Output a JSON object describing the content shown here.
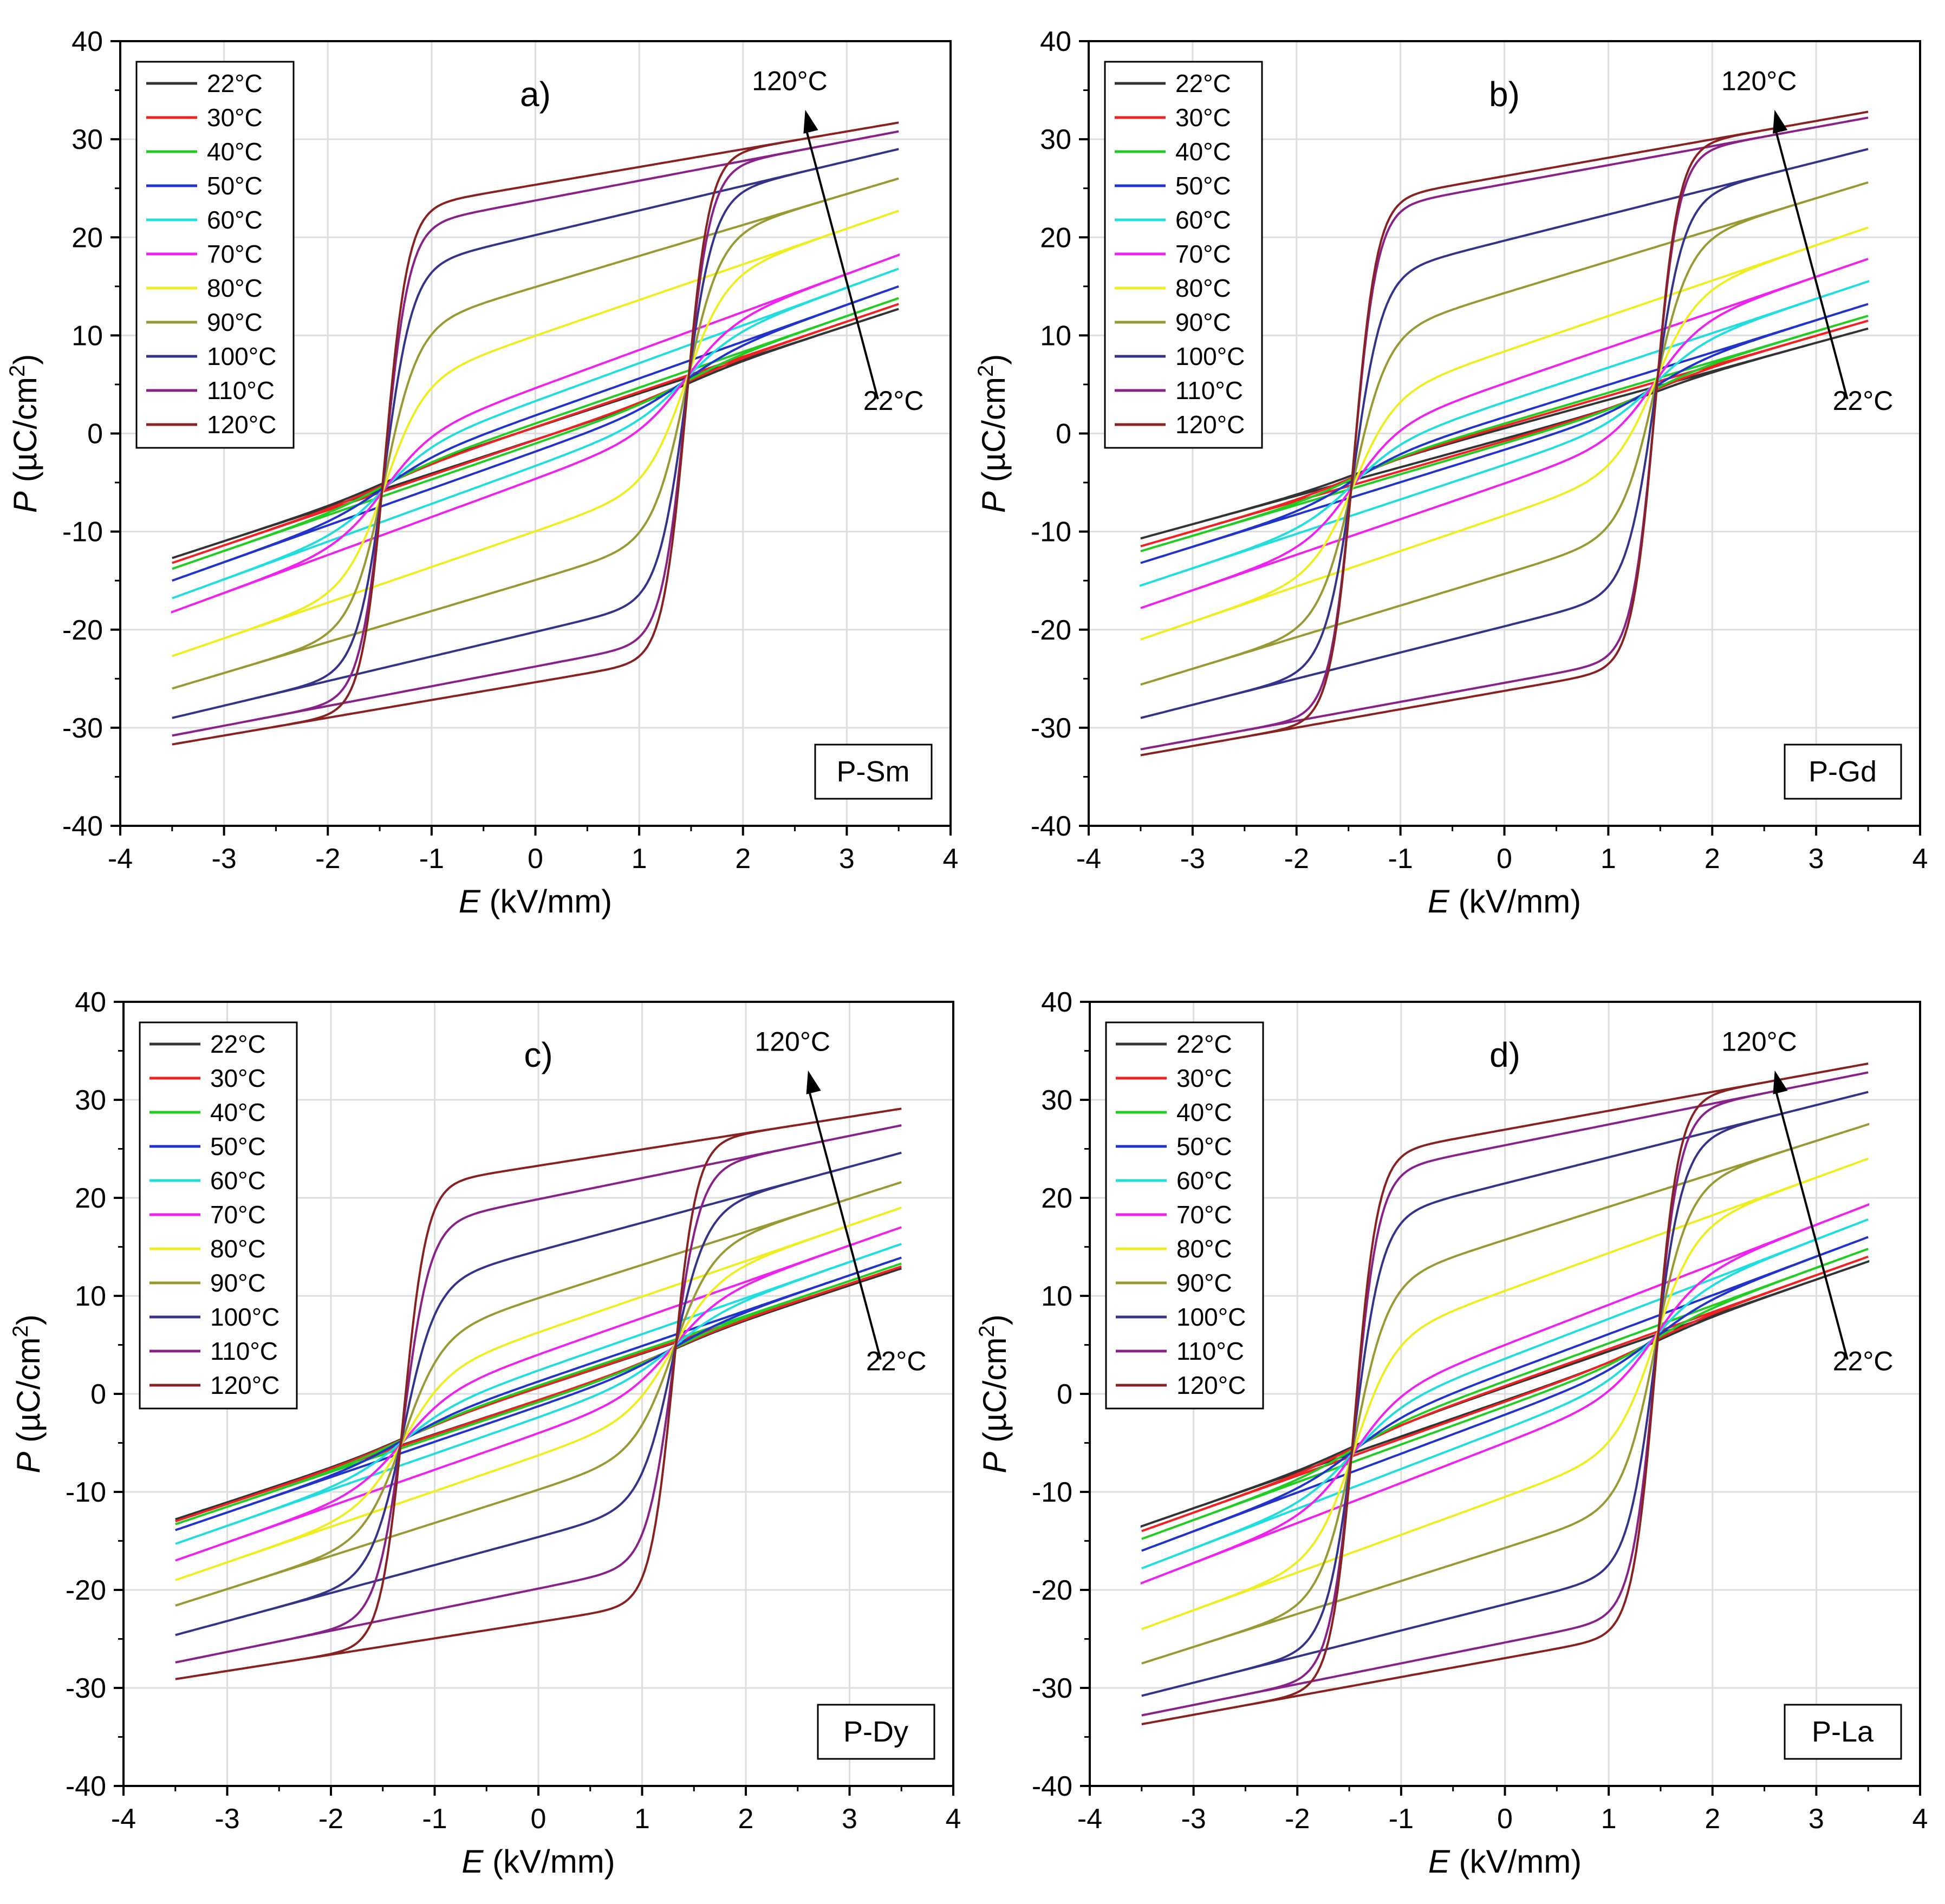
{
  "figure": {
    "panels": [
      {
        "letter": "a)",
        "sample": "P-Sm",
        "ps_base": 13.2,
        "ps_top": 31.5,
        "ec": 1.45
      },
      {
        "letter": "b)",
        "sample": "P-Gd",
        "ps_base": 11.0,
        "ps_top": 32.5,
        "ec": 1.45
      },
      {
        "letter": "c)",
        "sample": "P-Dy",
        "ps_base": 13.0,
        "ps_top": 29.0,
        "ec": 1.3
      },
      {
        "letter": "d)",
        "sample": "P-La",
        "ps_base": 13.8,
        "ps_top": 33.5,
        "ec": 1.45
      }
    ],
    "legend": [
      "22°C",
      "30°C",
      "40°C",
      "50°C",
      "60°C",
      "70°C",
      "80°C",
      "90°C",
      "100°C",
      "110°C",
      "120°C"
    ],
    "series_colors": [
      "#333333",
      "#ee2222",
      "#22cc22",
      "#2233cc",
      "#22dddd",
      "#ee22ee",
      "#eeee22",
      "#999933",
      "#33338a",
      "#882288",
      "#882222"
    ],
    "annotation_high": "120°C",
    "annotation_low": "22°C",
    "x_axis": {
      "label_symbol": "E",
      "label_unit": " (kV/mm)",
      "ticks": [
        "-4",
        "-3",
        "-2",
        "-1",
        "0",
        "1",
        "2",
        "3",
        "4"
      ]
    },
    "y_axis": {
      "label_symbol": "P",
      "label_unit": " (µC/cm",
      "label_sup": "2",
      "label_close": ")",
      "ticks": [
        "-40",
        "-30",
        "-20",
        "-10",
        "0",
        "10",
        "20",
        "30",
        "40"
      ]
    }
  },
  "chart_data": [
    {
      "type": "line",
      "panel": "a)",
      "sample": "P-Sm",
      "xlabel": "E (kV/mm)",
      "ylabel": "P (µC/cm2)",
      "xlim": [
        -4,
        4
      ],
      "ylim": [
        -40,
        40
      ],
      "grid": true,
      "legend_position": "top-left",
      "series": [
        {
          "name": "22°C",
          "E_max": 3.5,
          "P_max": 12.7,
          "P_min": -12.8
        },
        {
          "name": "30°C",
          "E_max": 3.5,
          "P_max": 13.2,
          "P_min": -13.0
        },
        {
          "name": "40°C",
          "E_max": 3.5,
          "P_max": 13.8,
          "P_min": -13.5
        },
        {
          "name": "50°C",
          "E_max": 3.5,
          "P_max": 15.0,
          "P_min": -14.8
        },
        {
          "name": "60°C",
          "E_max": 3.5,
          "P_max": 16.8,
          "P_min": -16.5
        },
        {
          "name": "70°C",
          "E_max": 3.5,
          "P_max": 18.2,
          "P_min": -17.8
        },
        {
          "name": "80°C",
          "E_max": 3.5,
          "P_max": 22.7,
          "P_min": -22.5
        },
        {
          "name": "90°C",
          "E_max": 3.5,
          "P_max": 26.0,
          "P_min": -25.8
        },
        {
          "name": "100°C",
          "E_max": 3.5,
          "P_max": 29.0,
          "P_min": -28.8
        },
        {
          "name": "110°C",
          "E_max": 3.5,
          "P_max": 30.8,
          "P_min": -30.5
        },
        {
          "name": "120°C",
          "E_max": 3.5,
          "P_max": 31.7,
          "P_min": -31.5
        }
      ]
    },
    {
      "type": "line",
      "panel": "b)",
      "sample": "P-Gd",
      "xlabel": "E (kV/mm)",
      "ylabel": "P (µC/cm2)",
      "xlim": [
        -4,
        4
      ],
      "ylim": [
        -40,
        40
      ],
      "grid": true,
      "legend_position": "top-left",
      "series": [
        {
          "name": "22°C",
          "E_max": 3.5,
          "P_max": 10.7,
          "P_min": -10.5
        },
        {
          "name": "30°C",
          "E_max": 3.5,
          "P_max": 11.5,
          "P_min": -11.3
        },
        {
          "name": "40°C",
          "E_max": 3.5,
          "P_max": 12.0,
          "P_min": -11.8
        },
        {
          "name": "50°C",
          "E_max": 3.5,
          "P_max": 13.2,
          "P_min": -13.0
        },
        {
          "name": "60°C",
          "E_max": 3.5,
          "P_max": 15.5,
          "P_min": -15.3
        },
        {
          "name": "70°C",
          "E_max": 3.5,
          "P_max": 17.8,
          "P_min": -17.8
        },
        {
          "name": "80°C",
          "E_max": 3.5,
          "P_max": 21.0,
          "P_min": -20.8
        },
        {
          "name": "90°C",
          "E_max": 3.5,
          "P_max": 25.6,
          "P_min": -25.3
        },
        {
          "name": "100°C",
          "E_max": 3.5,
          "P_max": 29.0,
          "P_min": -28.8
        },
        {
          "name": "110°C",
          "E_max": 3.5,
          "P_max": 32.2,
          "P_min": -32.2
        },
        {
          "name": "120°C",
          "E_max": 3.5,
          "P_max": 32.8,
          "P_min": -32.8
        }
      ]
    },
    {
      "type": "line",
      "panel": "c)",
      "sample": "P-Dy",
      "xlabel": "E (kV/mm)",
      "ylabel": "P (µC/cm2)",
      "xlim": [
        -4,
        4
      ],
      "ylim": [
        -40,
        40
      ],
      "grid": true,
      "legend_position": "top-left",
      "series": [
        {
          "name": "22°C",
          "E_max": 3.5,
          "P_max": 12.8,
          "P_min": -12.8
        },
        {
          "name": "30°C",
          "E_max": 3.5,
          "P_max": 13.0,
          "P_min": -13.0
        },
        {
          "name": "40°C",
          "E_max": 3.5,
          "P_max": 13.3,
          "P_min": -13.2
        },
        {
          "name": "50°C",
          "E_max": 3.5,
          "P_max": 13.9,
          "P_min": -13.8
        },
        {
          "name": "60°C",
          "E_max": 3.5,
          "P_max": 15.3,
          "P_min": -15.2
        },
        {
          "name": "70°C",
          "E_max": 3.5,
          "P_max": 17.0,
          "P_min": -16.9
        },
        {
          "name": "80°C",
          "E_max": 3.5,
          "P_max": 19.0,
          "P_min": -18.8
        },
        {
          "name": "90°C",
          "E_max": 3.5,
          "P_max": 21.6,
          "P_min": -21.5
        },
        {
          "name": "100°C",
          "E_max": 3.5,
          "P_max": 24.6,
          "P_min": -24.5
        },
        {
          "name": "110°C",
          "E_max": 3.5,
          "P_max": 27.4,
          "P_min": -27.3
        },
        {
          "name": "120°C",
          "E_max": 3.5,
          "P_max": 29.1,
          "P_min": -29.0
        }
      ]
    },
    {
      "type": "line",
      "panel": "d)",
      "sample": "P-La",
      "xlabel": "E (kV/mm)",
      "ylabel": "P (µC/cm2)",
      "xlim": [
        -4,
        4
      ],
      "ylim": [
        -40,
        40
      ],
      "grid": true,
      "legend_position": "top-left",
      "series": [
        {
          "name": "22°C",
          "E_max": 3.5,
          "P_max": 13.5,
          "P_min": -13.5
        },
        {
          "name": "30°C",
          "E_max": 3.5,
          "P_max": 14.0,
          "P_min": -14.0
        },
        {
          "name": "40°C",
          "E_max": 3.5,
          "P_max": 14.8,
          "P_min": -14.5
        },
        {
          "name": "50°C",
          "E_max": 3.5,
          "P_max": 16.0,
          "P_min": -15.8
        },
        {
          "name": "60°C",
          "E_max": 3.5,
          "P_max": 17.8,
          "P_min": -17.6
        },
        {
          "name": "70°C",
          "E_max": 3.5,
          "P_max": 19.3,
          "P_min": -18.8
        },
        {
          "name": "80°C",
          "E_max": 3.5,
          "P_max": 24.0,
          "P_min": -23.8
        },
        {
          "name": "90°C",
          "E_max": 3.5,
          "P_max": 27.5,
          "P_min": -27.5
        },
        {
          "name": "100°C",
          "E_max": 3.5,
          "P_max": 30.8,
          "P_min": -30.5
        },
        {
          "name": "110°C",
          "E_max": 3.5,
          "P_max": 32.8,
          "P_min": -32.8
        },
        {
          "name": "120°C",
          "E_max": 3.5,
          "P_max": 33.7,
          "P_min": -33.5
        }
      ]
    }
  ]
}
